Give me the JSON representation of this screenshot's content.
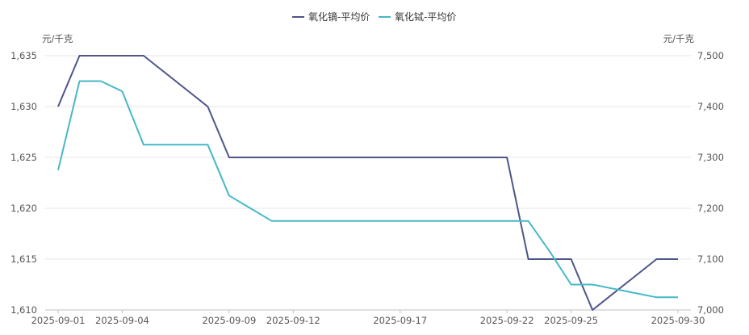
{
  "chart_data": {
    "type": "line",
    "title": "",
    "left_unit": "元/千克",
    "right_unit": "元/千克",
    "x_ticks": [
      "2025-09-01",
      "2025-09-04",
      "2025-09-09",
      "2025-09-12",
      "2025-09-17",
      "2025-09-22",
      "2025-09-25",
      "2025-09-30"
    ],
    "x": [
      "2025-09-01",
      "2025-09-02",
      "2025-09-03",
      "2025-09-04",
      "2025-09-05",
      "2025-09-08",
      "2025-09-09",
      "2025-09-10",
      "2025-09-11",
      "2025-09-12",
      "2025-09-15",
      "2025-09-16",
      "2025-09-17",
      "2025-09-18",
      "2025-09-19",
      "2025-09-22",
      "2025-09-23",
      "2025-09-24",
      "2025-09-25",
      "2025-09-26",
      "2025-09-29",
      "2025-09-30"
    ],
    "y_left": {
      "min": 1610,
      "max": 1635,
      "ticks": [
        "1,610",
        "1,615",
        "1,620",
        "1,625",
        "1,630",
        "1,635"
      ]
    },
    "y_right": {
      "min": 7000,
      "max": 7500,
      "ticks": [
        "7,000",
        "7,100",
        "7,200",
        "7,300",
        "7,400",
        "7,500"
      ]
    },
    "grid": true,
    "legend_position": "top-center",
    "series": [
      {
        "name": "氧化镝-平均价",
        "axis": "left",
        "color": "#4e5688",
        "values": [
          1630,
          1635,
          1635,
          1635,
          1635,
          1630,
          1625,
          1625,
          1625,
          1625,
          1625,
          1625,
          1625,
          1625,
          1625,
          1625,
          1615,
          1615,
          1615,
          1610,
          1615,
          1615
        ]
      },
      {
        "name": "氧化铽-平均价",
        "axis": "right",
        "color": "#47b8c6",
        "values": [
          7275,
          7450,
          7450,
          7430,
          7325,
          7325,
          7225,
          7200,
          7175,
          7175,
          7175,
          7175,
          7175,
          7175,
          7175,
          7175,
          7175,
          7115,
          7050,
          7050,
          7025,
          7025
        ]
      }
    ]
  }
}
